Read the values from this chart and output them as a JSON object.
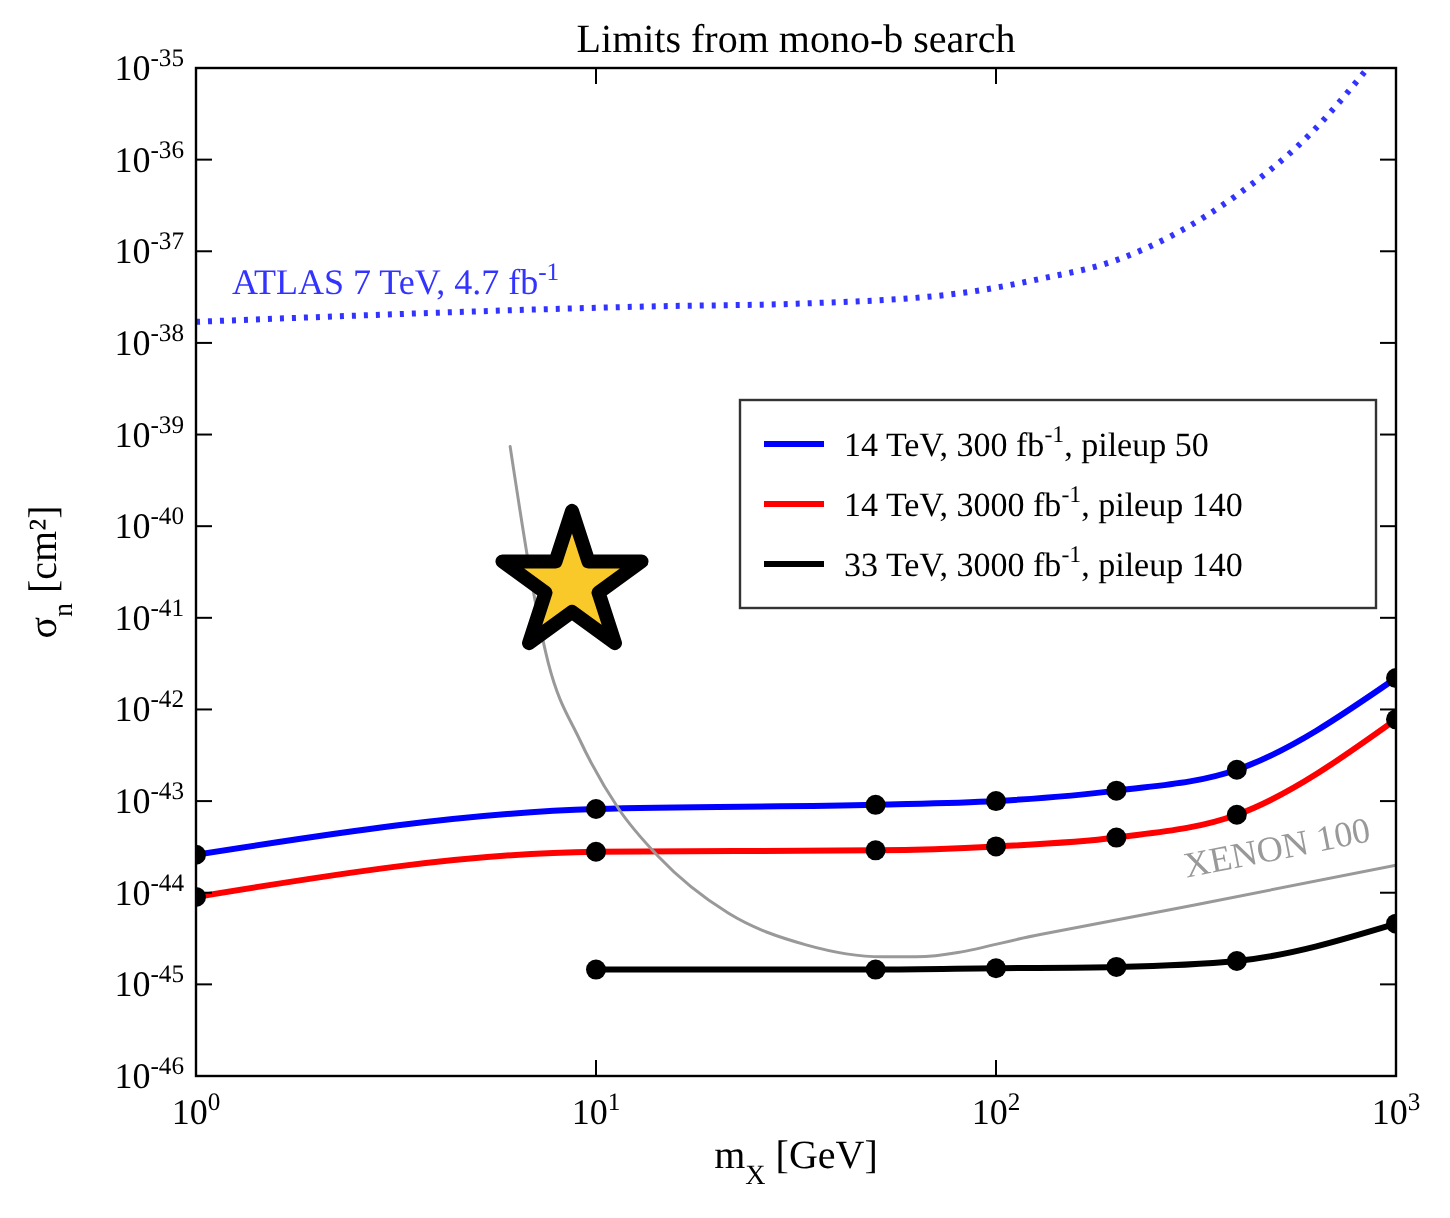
{
  "chart_data": {
    "type": "line",
    "title": "Limits from mono-b search",
    "xlabel": "m$_{X}$ [GeV]",
    "ylabel": "σ$_{n}$ [cm²]",
    "log": "xy",
    "grid": false,
    "legend": "top right",
    "xlim": [
      1,
      1000
    ],
    "xticks": [
      {
        "value": 1,
        "label": "10$^{0}$"
      },
      {
        "value": 10,
        "label": "10$^{1}$"
      },
      {
        "value": 100,
        "label": "10$^{2}$"
      },
      {
        "value": 1000,
        "label": "10$^{3}$"
      }
    ],
    "ylim": [
      1e-46,
      1e-35
    ],
    "yticks": [
      {
        "value": 1e-46,
        "label": "10$^{-46}$"
      },
      {
        "value": 1e-45,
        "label": "10$^{-45}$"
      },
      {
        "value": 1e-44,
        "label": "10$^{-44}$"
      },
      {
        "value": 1e-43,
        "label": "10$^{-43}$"
      },
      {
        "value": 1e-42,
        "label": "10$^{-42}$"
      },
      {
        "value": 1e-41,
        "label": "10$^{-41}$"
      },
      {
        "value": 1e-40,
        "label": "10$^{-40}$"
      },
      {
        "value": 1e-39,
        "label": "10$^{-39}$"
      },
      {
        "value": 1e-38,
        "label": "10$^{-38}$"
      },
      {
        "value": 1e-37,
        "label": "10$^{-37}$"
      },
      {
        "value": 1e-36,
        "label": "10$^{-36}$"
      },
      {
        "value": 1e-35,
        "label": "10$^{-35}$"
      }
    ],
    "series": [
      {
        "name": "14 TeV, 300 fb$^{-1}$, pileup 50",
        "color": "#0000ff",
        "marker": "circle",
        "line_style": "solid",
        "x": [
          1,
          10,
          50,
          100,
          200,
          400,
          1000
        ],
        "values": [
          2.6e-44,
          8.2e-44,
          9.1e-44,
          1e-43,
          1.3e-43,
          2.2e-43,
          2.2e-42
        ]
      },
      {
        "name": "14 TeV, 3000 fb$^{-1}$, pileup 140",
        "color": "#ff0000",
        "marker": "circle",
        "line_style": "solid",
        "x": [
          1,
          10,
          50,
          100,
          200,
          400,
          1000
        ],
        "values": [
          9e-45,
          2.8e-44,
          2.9e-44,
          3.2e-44,
          4e-44,
          7.1e-44,
          7.8e-43
        ]
      },
      {
        "name": "33 TeV, 3000 fb$^{-1}$, pileup 140",
        "color": "#000000",
        "marker": "circle",
        "line_style": "solid",
        "x": [
          10,
          50,
          100,
          200,
          400,
          1000
        ],
        "values": [
          1.45e-45,
          1.45e-45,
          1.5e-45,
          1.55e-45,
          1.8e-45,
          4.6e-45
        ]
      },
      {
        "name": "ATLAS 7 TeV, 4.7 fb$^{-1}$",
        "color": "#3333ff",
        "marker": "none",
        "line_style": "dotted",
        "x": [
          1,
          13.6,
          33.5,
          82,
          129,
          200,
          397,
          617,
          850
        ],
        "values": [
          1.7e-38,
          2.5e-38,
          2.7e-38,
          3.5e-38,
          5e-38,
          8e-38,
          4e-37,
          2e-36,
          1e-35
        ]
      },
      {
        "name": "XENON 100",
        "color": "#999999",
        "marker": "none",
        "line_style": "solid",
        "x": [
          6.1,
          7.6,
          9.1,
          11.4,
          14.3,
          21.4,
          33.5,
          52,
          63,
          129,
          316,
          1000
        ],
        "values": [
          7.4e-40,
          3.2e-42,
          4.7e-43,
          8.2e-44,
          2.5e-44,
          6e-45,
          2.7e-45,
          2e-45,
          2e-45,
          3.5e-45,
          7.4e-45,
          2e-44
        ]
      }
    ]
  }
}
